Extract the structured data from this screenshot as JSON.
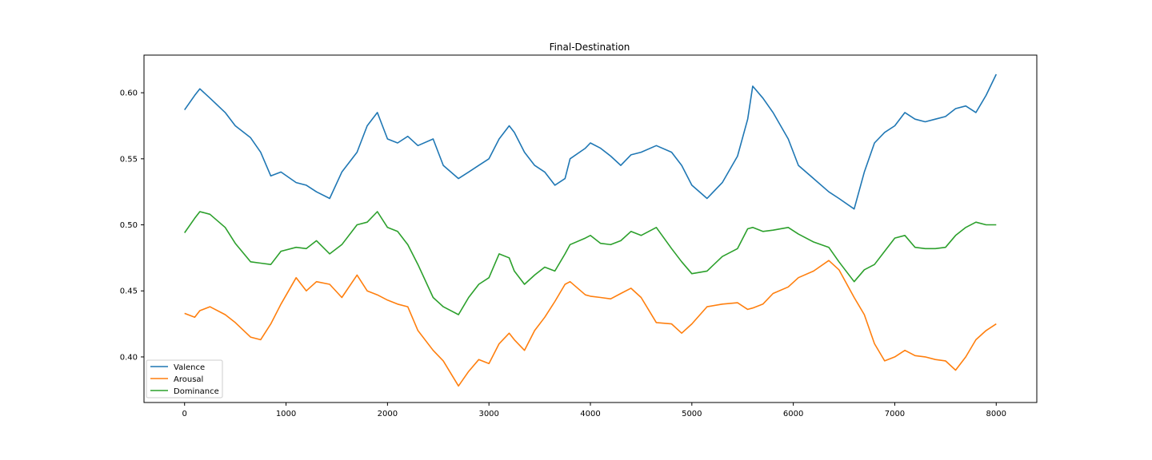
{
  "chart_data": {
    "type": "line",
    "title": "Final-Destination",
    "xlabel": "",
    "ylabel": "",
    "xlim": [
      -400,
      8400
    ],
    "ylim": [
      0.3655,
      0.6285
    ],
    "x_ticks": [
      0,
      1000,
      2000,
      3000,
      4000,
      5000,
      6000,
      7000,
      8000
    ],
    "x_tick_labels": [
      "0",
      "1000",
      "2000",
      "3000",
      "4000",
      "5000",
      "6000",
      "7000",
      "8000"
    ],
    "y_ticks": [
      0.4,
      0.45,
      0.5,
      0.55,
      0.6
    ],
    "y_tick_labels": [
      "0.40",
      "0.45",
      "0.50",
      "0.55",
      "0.60"
    ],
    "grid": false,
    "legend_position": "lower-left",
    "x": [
      0,
      100,
      150,
      250,
      400,
      500,
      650,
      750,
      850,
      950,
      1100,
      1200,
      1300,
      1430,
      1550,
      1700,
      1800,
      1900,
      2000,
      2100,
      2200,
      2300,
      2450,
      2550,
      2700,
      2800,
      2900,
      3000,
      3100,
      3200,
      3250,
      3350,
      3450,
      3550,
      3650,
      3750,
      3800,
      3950,
      4000,
      4100,
      4200,
      4300,
      4400,
      4500,
      4650,
      4800,
      4900,
      5000,
      5150,
      5300,
      5450,
      5550,
      5600,
      5700,
      5800,
      5950,
      6050,
      6200,
      6350,
      6450,
      6600,
      6700,
      6800,
      6900,
      7000,
      7100,
      7200,
      7300,
      7400,
      7500,
      7600,
      7700,
      7800,
      7900,
      8000
    ],
    "series": [
      {
        "name": "Valence",
        "color": "#1f77b4",
        "values": [
          0.587,
          0.598,
          0.603,
          0.596,
          0.585,
          0.575,
          0.566,
          0.555,
          0.537,
          0.54,
          0.532,
          0.53,
          0.525,
          0.52,
          0.54,
          0.555,
          0.575,
          0.585,
          0.565,
          0.562,
          0.567,
          0.56,
          0.565,
          0.545,
          0.535,
          0.54,
          0.545,
          0.55,
          0.565,
          0.575,
          0.57,
          0.555,
          0.545,
          0.54,
          0.53,
          0.535,
          0.55,
          0.558,
          0.562,
          0.558,
          0.552,
          0.545,
          0.553,
          0.555,
          0.56,
          0.555,
          0.545,
          0.53,
          0.52,
          0.532,
          0.552,
          0.58,
          0.605,
          0.596,
          0.585,
          0.565,
          0.545,
          0.535,
          0.525,
          0.52,
          0.512,
          0.54,
          0.562,
          0.57,
          0.575,
          0.585,
          0.58,
          0.578,
          0.58,
          0.582,
          0.588,
          0.59,
          0.585,
          0.598,
          0.614
        ]
      },
      {
        "name": "Arousal",
        "color": "#ff7f0e",
        "values": [
          0.433,
          0.43,
          0.435,
          0.438,
          0.432,
          0.426,
          0.415,
          0.413,
          0.425,
          0.44,
          0.46,
          0.45,
          0.457,
          0.455,
          0.445,
          0.462,
          0.45,
          0.447,
          0.443,
          0.44,
          0.438,
          0.42,
          0.405,
          0.397,
          0.378,
          0.389,
          0.398,
          0.395,
          0.41,
          0.418,
          0.413,
          0.405,
          0.42,
          0.43,
          0.442,
          0.455,
          0.457,
          0.447,
          0.446,
          0.445,
          0.444,
          0.448,
          0.452,
          0.445,
          0.426,
          0.425,
          0.418,
          0.425,
          0.438,
          0.44,
          0.441,
          0.436,
          0.437,
          0.44,
          0.448,
          0.453,
          0.46,
          0.465,
          0.473,
          0.466,
          0.445,
          0.432,
          0.41,
          0.397,
          0.4,
          0.405,
          0.401,
          0.4,
          0.398,
          0.397,
          0.39,
          0.4,
          0.413,
          0.42,
          0.425
        ]
      },
      {
        "name": "Dominance",
        "color": "#2ca02c",
        "values": [
          0.494,
          0.505,
          0.51,
          0.508,
          0.498,
          0.486,
          0.472,
          0.471,
          0.47,
          0.48,
          0.483,
          0.482,
          0.488,
          0.478,
          0.485,
          0.5,
          0.502,
          0.51,
          0.498,
          0.495,
          0.485,
          0.47,
          0.445,
          0.438,
          0.432,
          0.445,
          0.455,
          0.46,
          0.478,
          0.475,
          0.465,
          0.455,
          0.462,
          0.468,
          0.465,
          0.478,
          0.485,
          0.49,
          0.492,
          0.486,
          0.485,
          0.488,
          0.495,
          0.492,
          0.498,
          0.482,
          0.472,
          0.463,
          0.465,
          0.476,
          0.482,
          0.497,
          0.498,
          0.495,
          0.496,
          0.498,
          0.493,
          0.487,
          0.483,
          0.472,
          0.457,
          0.466,
          0.47,
          0.48,
          0.49,
          0.492,
          0.483,
          0.482,
          0.482,
          0.483,
          0.492,
          0.498,
          0.502,
          0.5,
          0.5
        ]
      }
    ]
  }
}
